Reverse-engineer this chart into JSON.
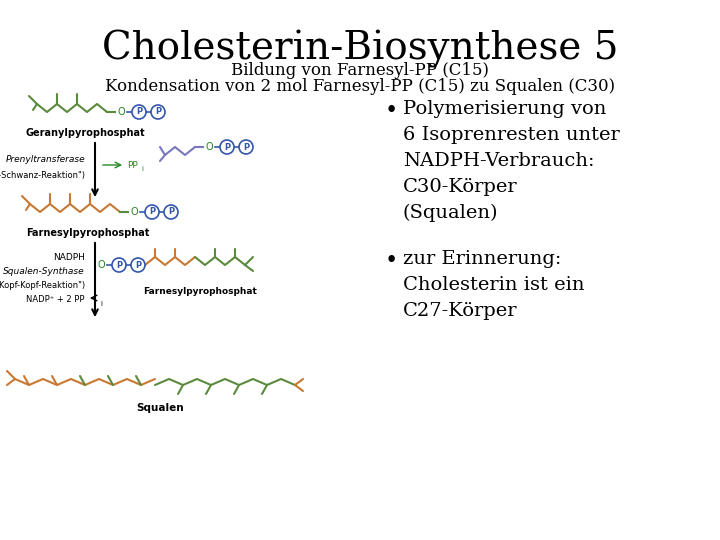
{
  "title": "Cholesterin-Biosynthese 5",
  "subtitle1": "Bildung von Farnesyl-PP (C15)",
  "subtitle2": "Kondensation von 2 mol Farnesyl-PP (C15) zu Squalen (C30)",
  "bullet1": "Polymerisierung von\n6 Isoprenresten unter\nNADPH-Verbrauch:\nC30-Körper\n(Squalen)",
  "bullet2": "zur Erinnerung:\nCholesterin ist ein\nC27-Körper",
  "bg_color": "#ffffff",
  "text_color": "#000000",
  "title_fontsize": 28,
  "subtitle_fontsize": 12,
  "body_fontsize": 14,
  "title_font": "DejaVu Serif",
  "body_font": "DejaVu Serif",
  "chain_green": "#5a8a3c",
  "chain_orange": "#c87832",
  "chain_blue": "#3355aa",
  "label_color": "#000000",
  "pp_circle_color": "#3355aa",
  "o_color": "#228822",
  "arrow_color": "#000000",
  "ppi_color": "#228822"
}
